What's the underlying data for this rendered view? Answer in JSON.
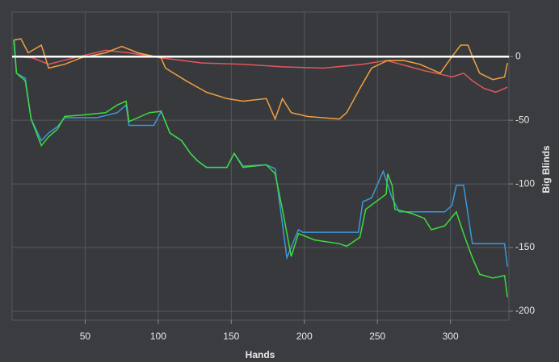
{
  "chart_data": {
    "type": "line",
    "xlabel": "Hands",
    "ylabel": "Big Blinds",
    "xlim": [
      0,
      340
    ],
    "xticks": [
      50,
      100,
      150,
      200,
      250,
      300
    ],
    "ylim": [
      -207,
      35
    ],
    "yticks": [
      0,
      -50,
      -100,
      -150,
      -200
    ],
    "grid": true,
    "zero_line": true,
    "series": [
      {
        "color": "#e0585c",
        "x": [
          1,
          14,
          25,
          42,
          64,
          80,
          102,
          130,
          158,
          185,
          213,
          240,
          256,
          266,
          282,
          294,
          301,
          309,
          315,
          323,
          331,
          339
        ],
        "values": [
          0,
          -1,
          -6,
          -1,
          5,
          3,
          -1,
          -5,
          -6,
          -8,
          -9,
          -6,
          -3,
          -6,
          -11,
          -14,
          -16,
          -13,
          -19,
          -25,
          -28,
          -24
        ]
      },
      {
        "color": "#f0a040",
        "x": [
          1,
          6,
          11,
          20,
          25,
          36,
          47,
          64,
          75,
          86,
          102,
          105,
          119,
          133,
          147,
          158,
          174,
          180,
          185,
          191,
          202,
          224,
          229,
          238,
          246,
          257,
          268,
          279,
          293,
          301,
          307,
          312,
          315,
          320,
          329,
          337,
          339
        ],
        "values": [
          13,
          14,
          3,
          9,
          -9,
          -6,
          -1,
          3,
          8,
          3,
          -1,
          -9,
          -19,
          -28,
          -33,
          -35,
          -33,
          -49,
          -33,
          -44,
          -47,
          -49,
          -44,
          -25,
          -9,
          -3,
          -3,
          -6,
          -13,
          0,
          9,
          9,
          0,
          -13,
          -18,
          -16,
          -5
        ]
      },
      {
        "color": "#3a9ad9",
        "x": [
          1,
          3,
          9,
          13,
          20,
          25,
          31,
          36,
          58,
          72,
          78,
          80,
          97,
          102,
          108,
          116,
          122,
          127,
          133,
          147,
          152,
          158,
          174,
          180,
          188,
          196,
          199,
          237,
          240,
          246,
          254,
          260,
          265,
          287,
          296,
          301,
          304,
          309,
          315,
          337,
          339
        ],
        "values": [
          13,
          -13,
          -17,
          -49,
          -66,
          -60,
          -55,
          -48,
          -48,
          -44,
          -38,
          -54,
          -54,
          -43,
          -60,
          -66,
          -76,
          -82,
          -87,
          -87,
          -76,
          -86,
          -85,
          -88,
          -158,
          -136,
          -138,
          -138,
          -114,
          -111,
          -90,
          -111,
          -122,
          -122,
          -122,
          -117,
          -101,
          -101,
          -147,
          -147,
          -165
        ]
      },
      {
        "color": "#3ddc3d",
        "x": [
          1.4,
          3,
          9,
          13,
          20,
          25,
          31,
          36,
          47,
          64,
          72,
          78,
          80,
          94,
          102,
          108,
          116,
          122,
          127,
          133,
          147,
          152,
          158,
          174,
          180,
          185,
          191,
          196,
          207,
          224,
          229,
          238,
          242,
          249,
          256,
          257,
          260,
          262,
          273,
          282,
          287,
          296,
          304,
          309,
          315,
          320,
          329,
          337,
          339
        ],
        "values": [
          13,
          -13,
          -19,
          -49,
          -70,
          -63,
          -57,
          -47,
          -46,
          -44,
          -38,
          -35,
          -51,
          -44,
          -43,
          -60,
          -66,
          -76,
          -82,
          -87,
          -87,
          -76,
          -87,
          -85,
          -92,
          -120,
          -157,
          -139,
          -144,
          -147,
          -149,
          -142,
          -120,
          -114,
          -108,
          -92,
          -101,
          -120,
          -123,
          -127,
          -136,
          -133,
          -122,
          -139,
          -158,
          -171,
          -174,
          -172,
          -189
        ]
      }
    ]
  }
}
